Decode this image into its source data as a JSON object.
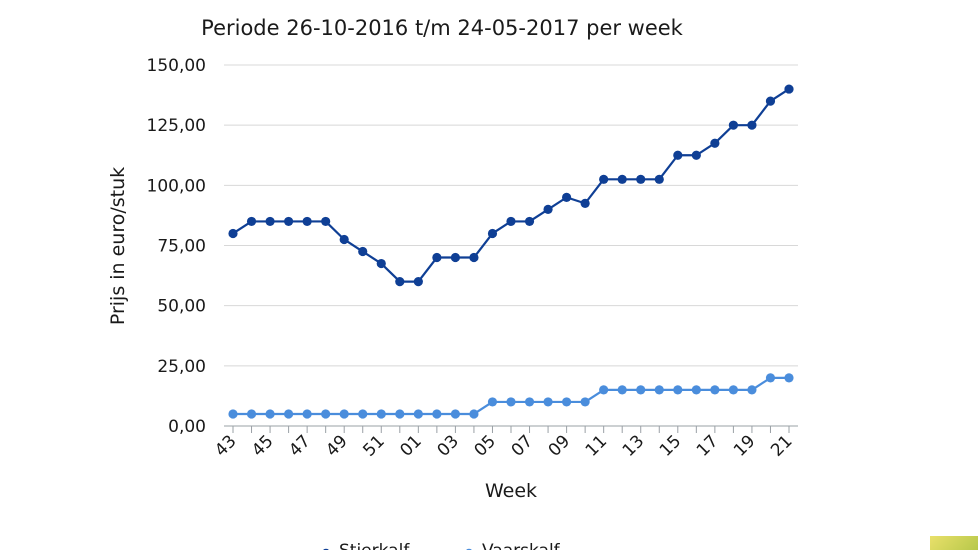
{
  "chart_data": {
    "type": "line",
    "title": "Periode 26-10-2016 t/m 24-05-2017 per week",
    "xlabel": "Week",
    "ylabel": "Prijs in euro/stuk",
    "ylim": [
      0,
      150
    ],
    "y_ticks": [
      "0,00",
      "25,00",
      "50,00",
      "75,00",
      "100,00",
      "125,00",
      "150,00"
    ],
    "x": [
      "43",
      "44",
      "45",
      "46",
      "47",
      "48",
      "49",
      "50",
      "51",
      "52",
      "01",
      "02",
      "03",
      "04",
      "05",
      "06",
      "07",
      "08",
      "09",
      "10",
      "11",
      "12",
      "13",
      "14",
      "15",
      "16",
      "17",
      "18",
      "19",
      "20",
      "21"
    ],
    "x_tick_labels": [
      "43",
      "45",
      "47",
      "49",
      "51",
      "01",
      "03",
      "05",
      "07",
      "09",
      "11",
      "13",
      "15",
      "17",
      "19",
      "21"
    ],
    "grid": true,
    "legend_position": "bottom",
    "series": [
      {
        "name": "Stierkalf",
        "color": "#0f3f95",
        "values": [
          80,
          85,
          85,
          85,
          85,
          85,
          77.5,
          72.5,
          67.5,
          60,
          60,
          70,
          70,
          70,
          80,
          85,
          85,
          90,
          95,
          92.5,
          102.5,
          102.5,
          102.5,
          102.5,
          112.5,
          112.5,
          117.5,
          125,
          125,
          135,
          140
        ]
      },
      {
        "name": "Vaarskalf",
        "color": "#4a8ddc",
        "values": [
          5,
          5,
          5,
          5,
          5,
          5,
          5,
          5,
          5,
          5,
          5,
          5,
          5,
          5,
          10,
          10,
          10,
          10,
          10,
          10,
          15,
          15,
          15,
          15,
          15,
          15,
          15,
          15,
          15,
          20,
          20
        ]
      }
    ]
  }
}
